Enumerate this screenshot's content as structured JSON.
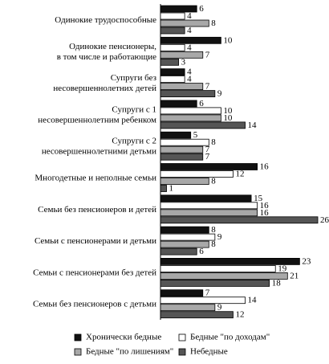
{
  "chart_data": {
    "type": "bar",
    "orientation": "horizontal",
    "categories": [
      "Одинокие трудоспособные",
      "Одинокие пенсионеры,\nв том числе и работающие",
      "Супруги без\nнесовершеннолетних детей",
      "Супруги с 1\nнесовершеннолетним ребенком",
      "Супруги с 2\nнесовершеннолетними детьми",
      "Многодетные и неполные семьи",
      "Семьи без пенсионеров и детей",
      "Семьи с пенсионерами и детьми",
      "Семьи с пенсионерами без детей",
      "Семьи без пенсионеров с детьми"
    ],
    "series": [
      {
        "name": "Хронически бедные",
        "color": "#111111",
        "values": [
          6,
          10,
          4,
          6,
          5,
          16,
          15,
          8,
          23,
          7
        ]
      },
      {
        "name": "Бедные \"по доходам\"",
        "color": "#ffffff",
        "values": [
          4,
          4,
          4,
          10,
          8,
          12,
          16,
          9,
          19,
          14
        ]
      },
      {
        "name": "Бедные \"по лишениям\"",
        "color": "#a8a8a8",
        "values": [
          8,
          7,
          7,
          10,
          7,
          8,
          16,
          8,
          21,
          9
        ]
      },
      {
        "name": "Небедные",
        "color": "#555555",
        "values": [
          4,
          3,
          9,
          14,
          7,
          1,
          26,
          6,
          18,
          12
        ]
      }
    ]
  }
}
